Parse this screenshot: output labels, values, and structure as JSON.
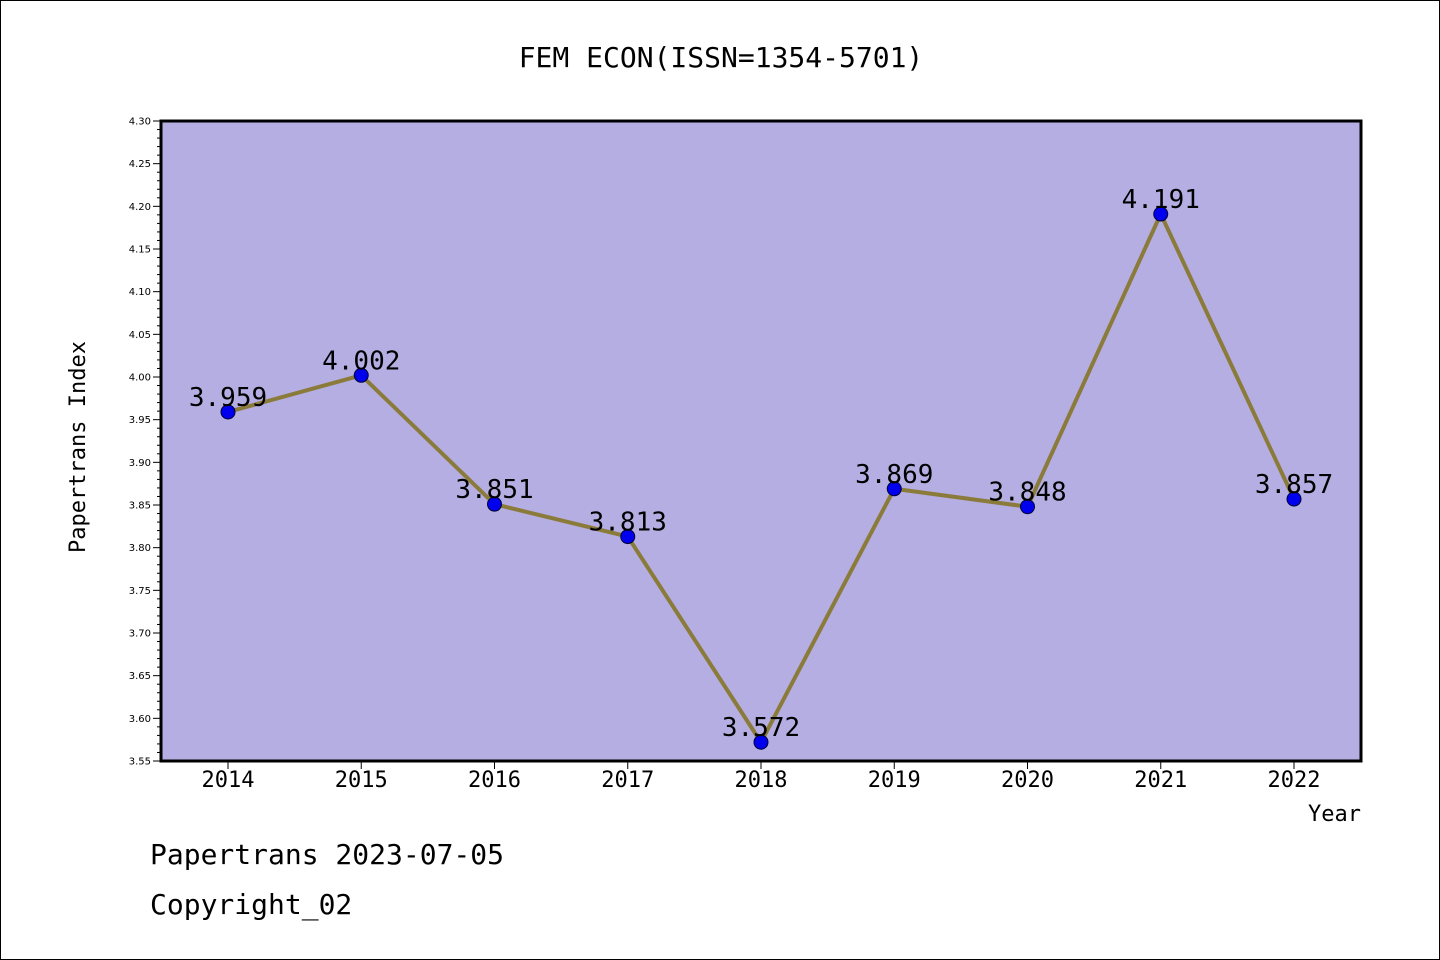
{
  "chart_data": {
    "type": "line",
    "title": "FEM ECON(ISSN=1354-5701)",
    "xlabel": "Year",
    "ylabel": "Papertrans Index",
    "categories": [
      "2014",
      "2015",
      "2016",
      "2017",
      "2018",
      "2019",
      "2020",
      "2021",
      "2022"
    ],
    "values": [
      3.959,
      4.002,
      3.851,
      3.813,
      3.572,
      3.869,
      3.848,
      4.191,
      3.857
    ],
    "data_labels": [
      "3.959",
      "4.002",
      "3.851",
      "3.813",
      "3.572",
      "3.869",
      "3.848",
      "4.191",
      "3.857"
    ],
    "ylim": [
      3.55,
      4.3
    ],
    "yticks": [
      "3.55",
      "3.60",
      "3.65",
      "3.70",
      "3.75",
      "3.80",
      "3.85",
      "3.90",
      "3.95",
      "4.00",
      "4.05",
      "4.10",
      "4.15",
      "4.20",
      "4.25",
      "4.30"
    ],
    "grid": false,
    "colors": {
      "plot_background": "#b4aee2",
      "line": "#8b7b3a",
      "marker": "#0000ee"
    }
  },
  "footer": {
    "line1": "Papertrans 2023-07-05",
    "line2": "Copyright_02"
  }
}
